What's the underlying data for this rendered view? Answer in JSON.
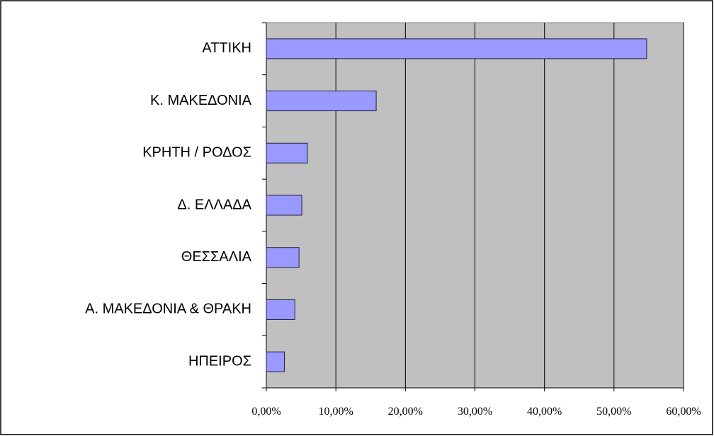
{
  "chart_data": {
    "type": "bar",
    "orientation": "horizontal",
    "categories": [
      "ΑΤΤΙΚΗ",
      "Κ. ΜΑΚΕΔΟΝΙΑ",
      "ΚΡΗΤΗ / ΡΟΔΟΣ",
      "Δ. ΕΛΛΑΔΑ",
      "ΘΕΣΣΑΛΙΑ",
      "Α. ΜΑΚΕΔΟΝΙΑ & ΘΡΑΚΗ",
      "ΗΠΕΙΡΟΣ"
    ],
    "values": [
      54.7,
      15.8,
      5.9,
      5.1,
      4.7,
      4.1,
      2.6
    ],
    "color": "#9999ff",
    "xlim": [
      0,
      60
    ],
    "xticks": [
      {
        "value": 0,
        "label": "0,00%"
      },
      {
        "value": 10,
        "label": "10,00%"
      },
      {
        "value": 20,
        "label": "20,00%"
      },
      {
        "value": 30,
        "label": "30,00%"
      },
      {
        "value": 40,
        "label": "40,00%"
      },
      {
        "value": 50,
        "label": "50,00%"
      },
      {
        "value": 60,
        "label": "60,00%"
      }
    ],
    "grid": true
  }
}
